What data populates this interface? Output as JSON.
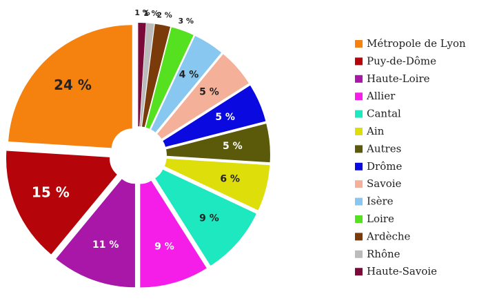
{
  "chart_data": {
    "type": "pie",
    "categories": [
      "Métropole de Lyon",
      "Puy-de-Dôme",
      "Haute-Loire",
      "Allier",
      "Cantal",
      "Ain",
      "Autres",
      "Drôme",
      "Savoie",
      "Isère",
      "Loire",
      "Ardèche",
      "Rhône",
      "Haute-Savoie"
    ],
    "values": [
      24,
      15,
      11,
      9,
      9,
      6,
      5,
      5,
      5,
      4,
      3,
      2,
      1,
      1
    ],
    "value_labels": [
      "24 %",
      "15 %",
      "11 %",
      "9 %",
      "9 %",
      "6 %",
      "5 %",
      "5 %",
      "5 %",
      "4 %",
      "3 %",
      "2 %",
      "1 %",
      "1 %"
    ],
    "colors": [
      "#f5820f",
      "#b5040a",
      "#a817a8",
      "#f51ee8",
      "#1de8c0",
      "#dede0a",
      "#5a5a0a",
      "#0a0ae0",
      "#f5b09a",
      "#88c8f0",
      "#55e020",
      "#7a3a0a",
      "#bbbbbb",
      "#7a0a3a"
    ],
    "legend": "right"
  }
}
